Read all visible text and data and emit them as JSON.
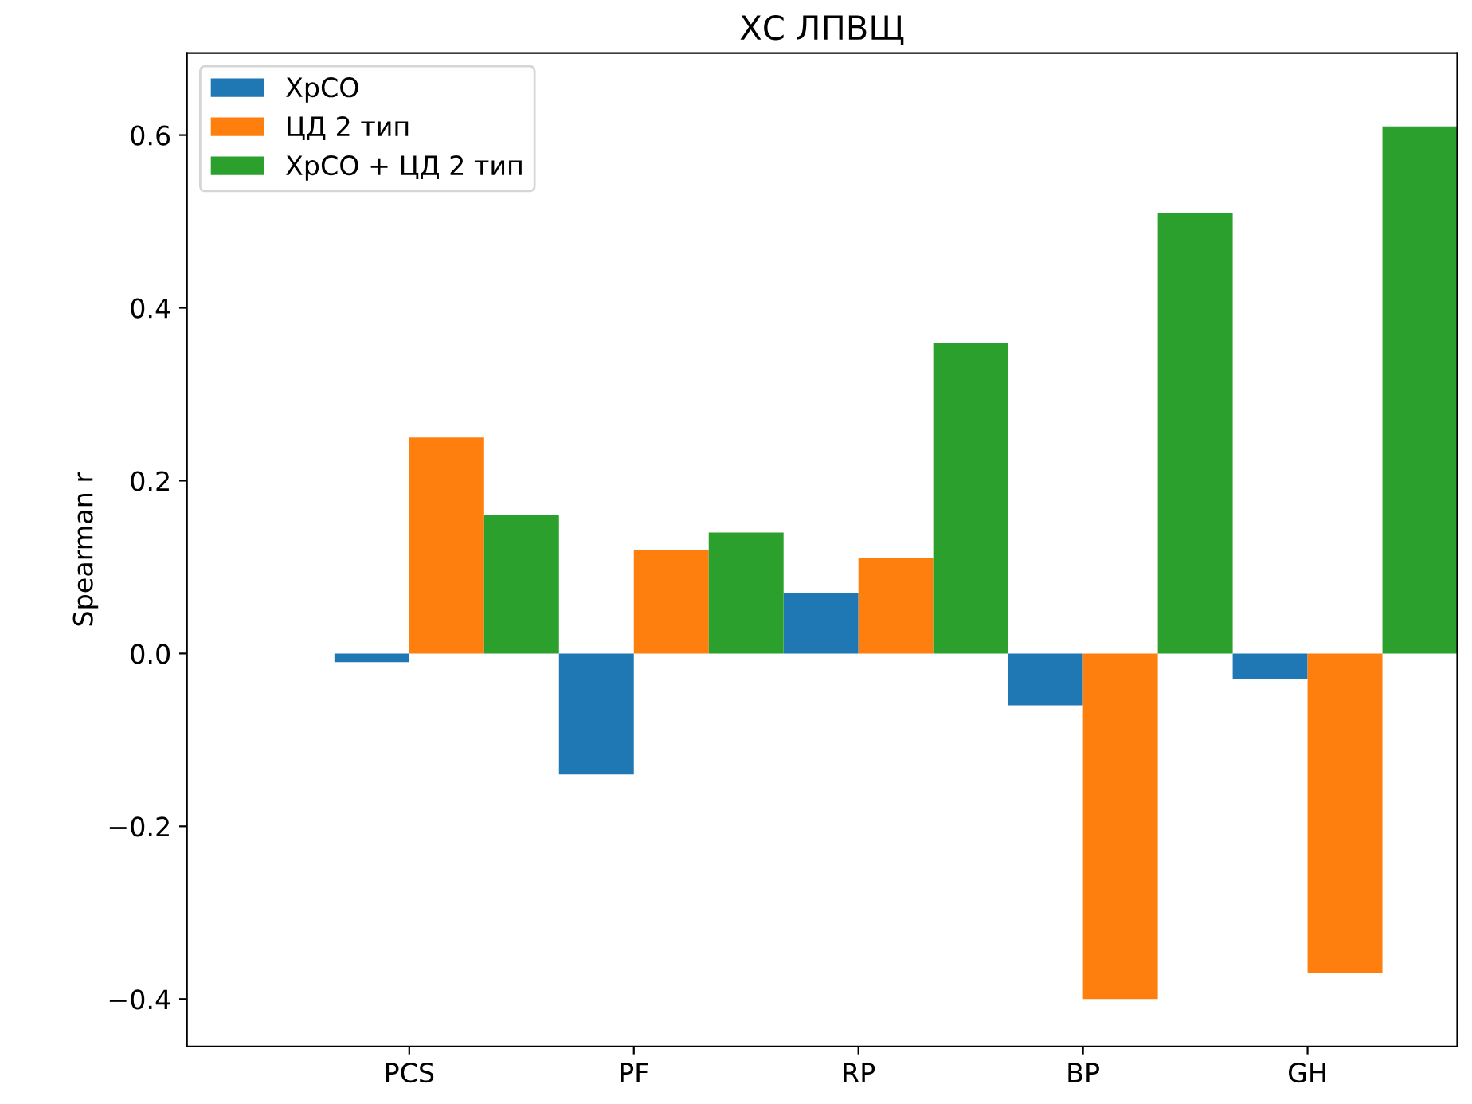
{
  "chart_data": {
    "type": "bar",
    "title": "ХС ЛПВЩ",
    "ylabel": "Spearman r",
    "categories": [
      "PCS",
      "PF",
      "RP",
      "BP",
      "GH"
    ],
    "series": [
      {
        "name": "ХрСО",
        "color": "#1f77b4",
        "values": [
          -0.01,
          -0.14,
          0.07,
          -0.06,
          -0.03
        ]
      },
      {
        "name": "ЦД 2 тип",
        "color": "#ff7f0e",
        "values": [
          0.25,
          0.12,
          0.11,
          -0.4,
          -0.37
        ]
      },
      {
        "name": "ХрСО + ЦД 2 тип",
        "color": "#2ca02c",
        "values": [
          0.16,
          0.14,
          0.36,
          0.51,
          0.61
        ]
      }
    ],
    "ylim": [
      -0.455,
      0.695
    ],
    "yticks": [
      {
        "value": -0.4,
        "label": "−0.4"
      },
      {
        "value": -0.2,
        "label": "−0.2"
      },
      {
        "value": 0.0,
        "label": "0.0"
      },
      {
        "value": 0.2,
        "label": "0.2"
      },
      {
        "value": 0.4,
        "label": "0.4"
      },
      {
        "value": 0.6,
        "label": "0.6"
      }
    ],
    "legend": "top left",
    "grid": false
  }
}
